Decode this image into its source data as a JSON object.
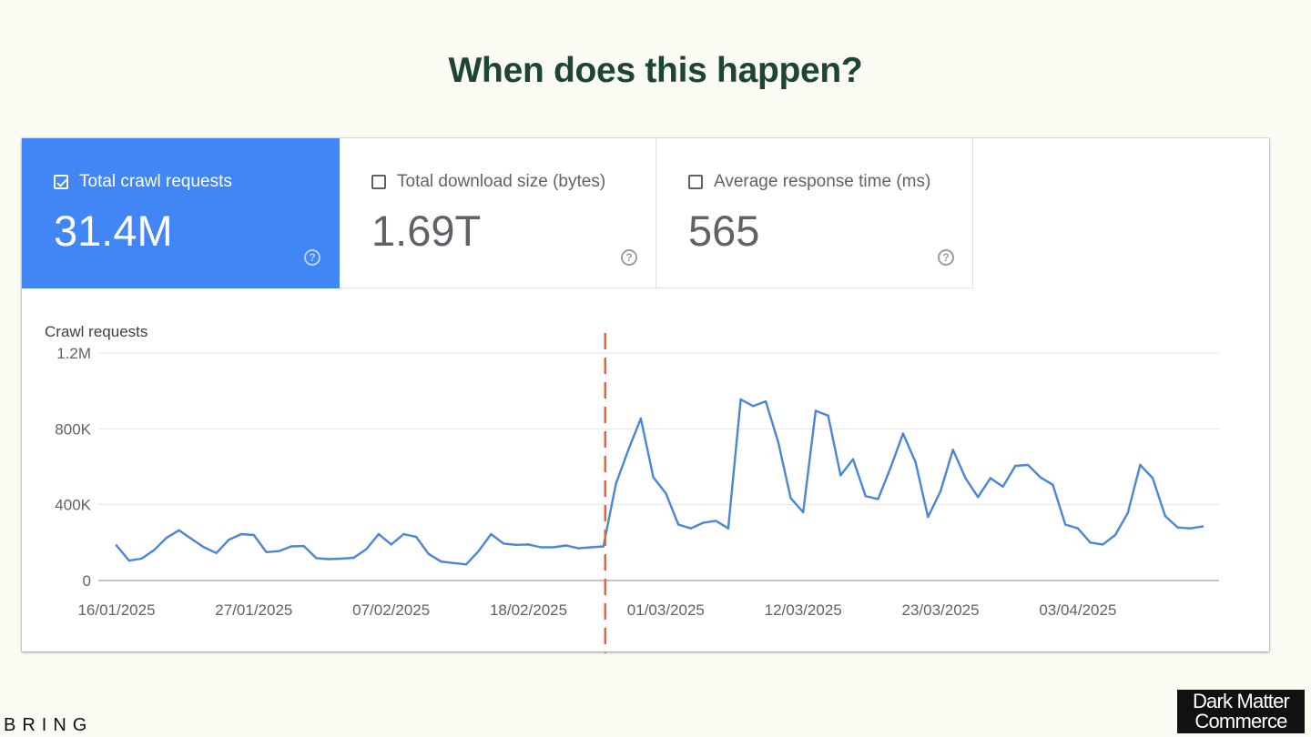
{
  "slide": {
    "title": "When does this happen?",
    "brand_left": "BRING",
    "brand_right_line1": "Dark Matter",
    "brand_right_line2": "Commerce"
  },
  "metrics": [
    {
      "label": "Total crawl requests",
      "value": "31.4M",
      "checked": true
    },
    {
      "label": "Total download size (bytes)",
      "value": "1.69T",
      "checked": false
    },
    {
      "label": "Average response time (ms)",
      "value": "565",
      "checked": false
    }
  ],
  "colors": {
    "accent": "#4285f4",
    "line": "#4a86d8",
    "marker": "#e8603c",
    "title": "#1e4434"
  },
  "chart_data": {
    "type": "line",
    "title": "",
    "ylabel": "Crawl requests",
    "xlabel": "",
    "ylim": [
      0,
      1200000
    ],
    "yticks": [
      0,
      400000,
      800000,
      1200000
    ],
    "ytick_labels": [
      "0",
      "400K",
      "800K",
      "1.2M"
    ],
    "xtick_labels": [
      "16/01/2025",
      "27/01/2025",
      "07/02/2025",
      "18/02/2025",
      "01/03/2025",
      "12/03/2025",
      "23/03/2025",
      "03/04/2025"
    ],
    "x_start": "16/01/2025",
    "marker_date": "24/02/2025",
    "marker_style": "dashed vertical line",
    "grid": true,
    "series": [
      {
        "values": [
          185000,
          105000,
          115000,
          160000,
          225000,
          265000,
          220000,
          175000,
          145000,
          215000,
          245000,
          240000,
          150000,
          155000,
          180000,
          182000,
          118000,
          113000,
          115000,
          120000,
          165000,
          245000,
          190000,
          245000,
          230000,
          140000,
          100000,
          92000,
          85000,
          155000,
          245000,
          195000,
          188000,
          190000,
          175000,
          175000,
          185000,
          170000,
          175000,
          180000,
          510000,
          690000,
          855000,
          545000,
          460000,
          295000,
          275000,
          305000,
          315000,
          275000,
          955000,
          920000,
          945000,
          730000,
          435000,
          360000,
          895000,
          870000,
          555000,
          640000,
          445000,
          430000,
          595000,
          775000,
          625000,
          335000,
          470000,
          690000,
          540000,
          440000,
          540000,
          495000,
          605000,
          610000,
          545000,
          505000,
          295000,
          275000,
          200000,
          190000,
          240000,
          355000,
          610000,
          540000,
          340000,
          280000,
          275000,
          285000
        ]
      }
    ]
  }
}
